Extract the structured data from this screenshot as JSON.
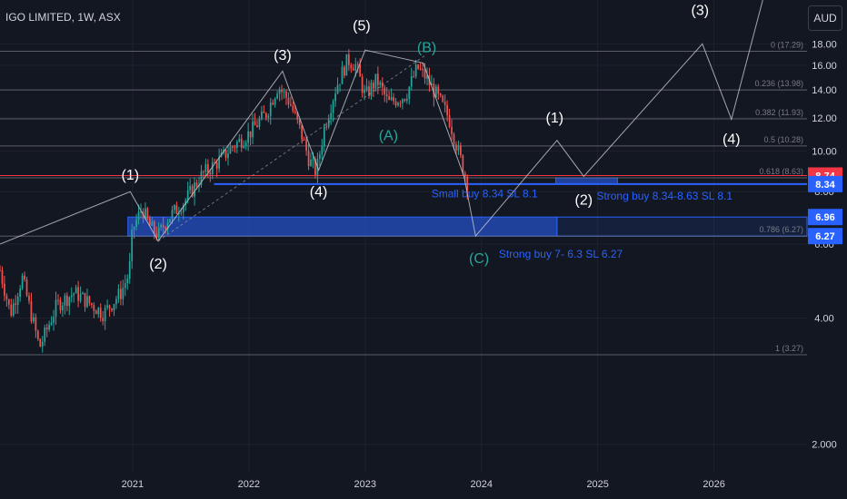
{
  "header": {
    "symbol": "IGO LIMITED, 1W, ASX",
    "currency_button": "AUD"
  },
  "chart_data": {
    "type": "candlestick",
    "symbol": "IGO LIMITED",
    "interval": "1W",
    "exchange": "ASX",
    "yscale": "log",
    "ylim": [
      1.72,
      22.9
    ],
    "xlim": [
      2019.86,
      2026.8
    ],
    "grid": true,
    "y_ticks": [
      "2.000",
      "4.00",
      "6.00",
      "8.00",
      "10.00",
      "12.00",
      "14.00",
      "16.00",
      "18.00"
    ],
    "y_tick_values": [
      2,
      4,
      6,
      8,
      10,
      12,
      14,
      16,
      18
    ],
    "x_ticks": [
      "2021",
      "2022",
      "2023",
      "2024",
      "2025",
      "2026"
    ],
    "x_tick_values": [
      2021,
      2022,
      2023,
      2024,
      2025,
      2026
    ],
    "price_series": [
      [
        2019.86,
        5.2
      ],
      [
        2019.95,
        4.1
      ],
      [
        2020.05,
        5.0
      ],
      [
        2020.2,
        3.4
      ],
      [
        2020.35,
        4.3
      ],
      [
        2020.5,
        4.6
      ],
      [
        2020.6,
        4.4
      ],
      [
        2020.75,
        4.1
      ],
      [
        2020.9,
        4.6
      ],
      [
        2020.97,
        5.1
      ],
      [
        2021.0,
        6.5
      ],
      [
        2021.08,
        7.3
      ],
      [
        2021.15,
        6.6
      ],
      [
        2021.22,
        6.3
      ],
      [
        2021.3,
        6.9
      ],
      [
        2021.45,
        7.6
      ],
      [
        2021.6,
        8.8
      ],
      [
        2021.75,
        9.5
      ],
      [
        2021.85,
        10.2
      ],
      [
        2022.0,
        11.0
      ],
      [
        2022.15,
        12.3
      ],
      [
        2022.25,
        14.3
      ],
      [
        2022.35,
        13.1
      ],
      [
        2022.45,
        11.0
      ],
      [
        2022.52,
        9.5
      ],
      [
        2022.58,
        8.9
      ],
      [
        2022.65,
        11.4
      ],
      [
        2022.75,
        14.2
      ],
      [
        2022.85,
        16.5
      ],
      [
        2022.92,
        16.0
      ],
      [
        2023.0,
        13.5
      ],
      [
        2023.1,
        14.8
      ],
      [
        2023.2,
        13.0
      ],
      [
        2023.35,
        13.6
      ],
      [
        2023.45,
        15.8
      ],
      [
        2023.52,
        15.0
      ],
      [
        2023.62,
        13.5
      ],
      [
        2023.72,
        12.0
      ],
      [
        2023.8,
        10.0
      ],
      [
        2023.88,
        8.4
      ]
    ],
    "fib_levels": [
      {
        "label": "0 (17.29)",
        "value": 17.29
      },
      {
        "label": "0.236 (13.98)",
        "value": 13.98
      },
      {
        "label": "0.382 (11.93)",
        "value": 11.93
      },
      {
        "label": "0.5 (10.28)",
        "value": 10.28
      },
      {
        "label": "0.618 (8.63)",
        "value": 8.63
      },
      {
        "label": "0.786 (6.27)",
        "value": 6.27
      },
      {
        "label": "1 (3.27)",
        "value": 3.27
      }
    ],
    "price_labels": [
      {
        "text": "8.74",
        "value": 8.74,
        "color": "#f23645"
      },
      {
        "text": "8.34",
        "value": 8.34,
        "color": "#2962ff"
      },
      {
        "text": "6.96",
        "value": 6.96,
        "color": "#2962ff"
      },
      {
        "text": "6.27",
        "value": 6.27,
        "color": "#2962ff"
      }
    ],
    "zones": [
      {
        "x0": 2020.96,
        "x1": 2024.65,
        "y0": 6.27,
        "y1": 6.96
      },
      {
        "x0": 2024.65,
        "x1": 2026.8,
        "y0": 6.27,
        "y1": 6.96
      },
      {
        "x0": 2024.64,
        "x1": 2025.17,
        "y0": 8.34,
        "y1": 8.63
      }
    ],
    "hlines": [
      {
        "x0": 2021.7,
        "x1": 2026.8,
        "value": 8.34,
        "color": "#2962ff"
      },
      {
        "x0": 2019.86,
        "x1": 2026.8,
        "value": 8.74,
        "color": "#f23645"
      }
    ],
    "wave_path_white": [
      [
        2019.86,
        6.0
      ],
      [
        2020.98,
        8.0
      ],
      [
        2021.22,
        6.1
      ],
      [
        2022.29,
        15.5
      ],
      [
        2022.6,
        9.0
      ],
      [
        2023.0,
        17.4
      ],
      [
        2023.5,
        16.2
      ],
      [
        2023.85,
        8.7
      ],
      [
        2023.95,
        6.27
      ],
      [
        2024.65,
        10.6
      ],
      [
        2024.88,
        8.7
      ],
      [
        2025.9,
        18.0
      ],
      [
        2026.15,
        11.9
      ],
      [
        2026.43,
        23.5
      ]
    ],
    "wave_labels": [
      {
        "text": "(1)",
        "x": 2020.98,
        "y": 8.55,
        "color": "#ffffff"
      },
      {
        "text": "(2)",
        "x": 2021.22,
        "y": 5.25,
        "color": "#ffffff"
      },
      {
        "text": "(3)",
        "x": 2022.29,
        "y": 16.5,
        "color": "#ffffff"
      },
      {
        "text": "(4)",
        "x": 2022.6,
        "y": 7.8,
        "color": "#ffffff"
      },
      {
        "text": "(5)",
        "x": 2022.97,
        "y": 19.4,
        "color": "#ffffff"
      },
      {
        "text": "(B)",
        "x": 2023.53,
        "y": 17.2,
        "color": "#26a69a"
      },
      {
        "text": "(A)",
        "x": 2023.2,
        "y": 10.6,
        "color": "#26a69a"
      },
      {
        "text": "(C)",
        "x": 2023.98,
        "y": 5.4,
        "color": "#26a69a"
      },
      {
        "text": "(1)",
        "x": 2024.63,
        "y": 11.7,
        "color": "#ffffff"
      },
      {
        "text": "(2)",
        "x": 2024.88,
        "y": 7.45,
        "color": "#ffffff"
      },
      {
        "text": "(3)",
        "x": 2025.88,
        "y": 21.1,
        "color": "#ffffff"
      },
      {
        "text": "(4)",
        "x": 2026.15,
        "y": 10.4,
        "color": "#ffffff"
      }
    ],
    "annotations": [
      {
        "text": "Small buy 8.34 SL 8.1",
        "x": 2023.57,
        "y": 7.75
      },
      {
        "text": "Strong buy 8.34-8.63 SL 8.1",
        "x": 2024.99,
        "y": 7.65
      },
      {
        "text": "Strong buy 7- 6.3 SL 6.27",
        "x": 2024.15,
        "y": 5.57
      }
    ]
  }
}
